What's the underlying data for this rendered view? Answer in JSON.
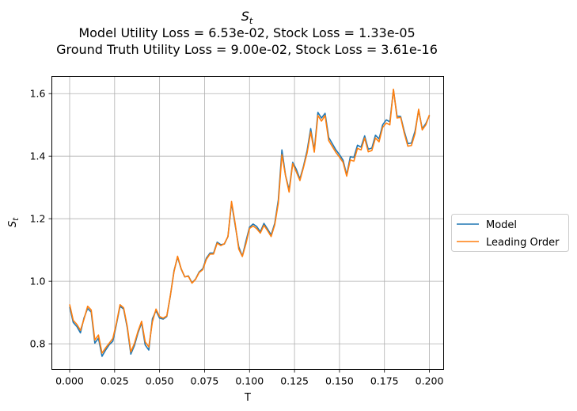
{
  "chart_data": {
    "type": "line",
    "title": {
      "symbol_base": "S",
      "symbol_sub": "t",
      "line2": "Model Utility Loss = 6.53e-02, Stock Loss = 1.33e-05",
      "line3": "Ground Truth Utility Loss = 9.00e-02, Stock Loss = 3.61e-16"
    },
    "xlabel": "T",
    "ylabel_base": "S",
    "ylabel_sub": "t",
    "xlim": [
      -0.0099,
      0.2079
    ],
    "ylim": [
      0.718,
      1.655
    ],
    "xticks": [
      0.0,
      0.025,
      0.05,
      0.075,
      0.1,
      0.125,
      0.15,
      0.175,
      0.2
    ],
    "xtick_labels": [
      "0.000",
      "0.025",
      "0.050",
      "0.075",
      "0.100",
      "0.125",
      "0.150",
      "0.175",
      "0.200"
    ],
    "yticks": [
      0.8,
      1.0,
      1.2,
      1.4,
      1.6
    ],
    "ytick_labels": [
      "0.8",
      "1.0",
      "1.2",
      "1.4",
      "1.6"
    ],
    "grid": true,
    "legend_position": "outside-right-center",
    "x_start": 0.0,
    "x_step": 0.002,
    "series": [
      {
        "name": "Model",
        "color": "#1f77b4",
        "values": [
          0.918,
          0.868,
          0.855,
          0.835,
          0.883,
          0.913,
          0.901,
          0.802,
          0.818,
          0.76,
          0.78,
          0.797,
          0.808,
          0.862,
          0.92,
          0.911,
          0.852,
          0.767,
          0.794,
          0.835,
          0.867,
          0.796,
          0.78,
          0.88,
          0.906,
          0.882,
          0.879,
          0.887,
          0.954,
          1.033,
          1.077,
          1.039,
          1.014,
          1.017,
          0.995,
          1.007,
          1.03,
          1.04,
          1.074,
          1.09,
          1.09,
          1.125,
          1.117,
          1.119,
          1.143,
          1.25,
          1.18,
          1.11,
          1.08,
          1.128,
          1.173,
          1.183,
          1.175,
          1.158,
          1.185,
          1.167,
          1.148,
          1.185,
          1.26,
          1.42,
          1.339,
          1.292,
          1.38,
          1.358,
          1.327,
          1.368,
          1.418,
          1.488,
          1.418,
          1.54,
          1.522,
          1.537,
          1.46,
          1.44,
          1.42,
          1.405,
          1.387,
          1.34,
          1.398,
          1.396,
          1.435,
          1.429,
          1.465,
          1.422,
          1.426,
          1.467,
          1.455,
          1.5,
          1.516,
          1.51,
          1.612,
          1.528,
          1.527,
          1.48,
          1.44,
          1.442,
          1.48,
          1.547,
          1.488,
          1.504,
          1.53
        ]
      },
      {
        "name": "Leading Order",
        "color": "#ff7f0e",
        "values": [
          0.926,
          0.875,
          0.862,
          0.843,
          0.879,
          0.92,
          0.908,
          0.812,
          0.828,
          0.77,
          0.787,
          0.802,
          0.817,
          0.866,
          0.925,
          0.915,
          0.857,
          0.774,
          0.801,
          0.84,
          0.872,
          0.806,
          0.79,
          0.87,
          0.911,
          0.887,
          0.882,
          0.889,
          0.955,
          1.03,
          1.08,
          1.04,
          1.014,
          1.016,
          0.994,
          1.006,
          1.028,
          1.037,
          1.07,
          1.087,
          1.087,
          1.122,
          1.114,
          1.12,
          1.143,
          1.255,
          1.185,
          1.103,
          1.079,
          1.12,
          1.169,
          1.177,
          1.168,
          1.154,
          1.179,
          1.162,
          1.143,
          1.18,
          1.25,
          1.405,
          1.338,
          1.285,
          1.376,
          1.35,
          1.322,
          1.364,
          1.41,
          1.478,
          1.413,
          1.53,
          1.512,
          1.53,
          1.45,
          1.431,
          1.412,
          1.397,
          1.38,
          1.336,
          1.388,
          1.384,
          1.425,
          1.42,
          1.458,
          1.414,
          1.418,
          1.458,
          1.446,
          1.492,
          1.506,
          1.5,
          1.614,
          1.522,
          1.524,
          1.474,
          1.432,
          1.434,
          1.472,
          1.55,
          1.484,
          1.5,
          1.532
        ]
      }
    ]
  }
}
